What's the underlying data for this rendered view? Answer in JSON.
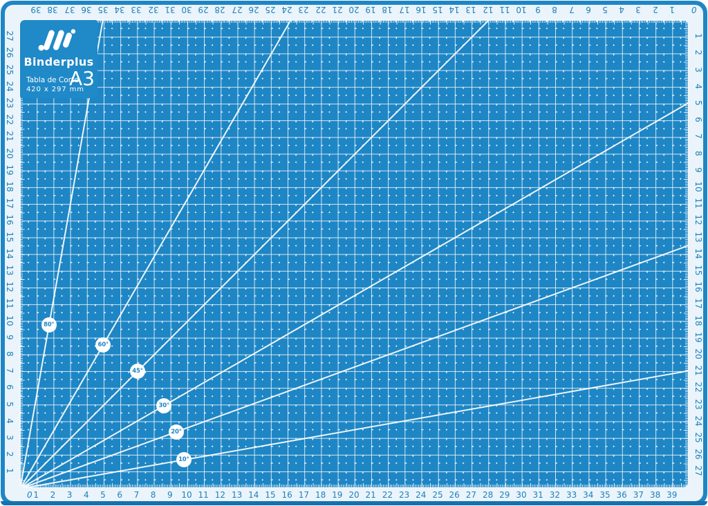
{
  "brand": {
    "name": "Binderplus"
  },
  "panel": {
    "product": "Tabla de Corte",
    "dimensions": "420 x 297 mm",
    "format": "A3"
  },
  "rulers": {
    "bottom": {
      "labels": [
        "1",
        "2",
        "3",
        "4",
        "5",
        "6",
        "7",
        "8",
        "9",
        "10",
        "11",
        "12",
        "13",
        "14",
        "15",
        "16",
        "17",
        "18",
        "19",
        "20",
        "21",
        "22",
        "23",
        "24",
        "25",
        "26",
        "27",
        "28",
        "29",
        "30",
        "31",
        "32",
        "33",
        "34",
        "35",
        "36",
        "37",
        "38",
        "39"
      ]
    },
    "top": {
      "labels": [
        "39",
        "38",
        "37",
        "36",
        "35",
        "34",
        "33",
        "32",
        "31",
        "30",
        "29",
        "28",
        "27",
        "26",
        "25",
        "24",
        "23",
        "22",
        "21",
        "20",
        "19",
        "18",
        "17",
        "16",
        "15",
        "14",
        "13",
        "12",
        "11",
        "10",
        "9",
        "8",
        "7",
        "6",
        "5",
        "4",
        "3",
        "2",
        "1"
      ]
    },
    "left": {
      "labels": [
        "27",
        "26",
        "25",
        "24",
        "23",
        "22",
        "21",
        "20",
        "19",
        "18",
        "17",
        "16",
        "15",
        "14",
        "13",
        "12",
        "11",
        "10",
        "9",
        "8",
        "7",
        "6",
        "5",
        "4",
        "3",
        "2",
        "1"
      ]
    },
    "right": {
      "labels": [
        "1",
        "2",
        "3",
        "4",
        "5",
        "6",
        "7",
        "8",
        "9",
        "10",
        "11",
        "12",
        "13",
        "14",
        "15",
        "16",
        "17",
        "18",
        "19",
        "20",
        "21",
        "22",
        "23",
        "24",
        "25",
        "26",
        "27"
      ]
    },
    "corner_zero_bottom_left": "0",
    "corner_zero_top_right": "0"
  },
  "angle_badges": [
    {
      "label": "80°",
      "degrees": 80
    },
    {
      "label": "60°",
      "degrees": 60
    },
    {
      "label": "45°",
      "degrees": 45
    },
    {
      "label": "30°",
      "degrees": 30
    },
    {
      "label": "20°",
      "degrees": 20
    },
    {
      "label": "10°",
      "degrees": 10
    }
  ],
  "colors": {
    "mat_blue": "#1E86C5",
    "panel_blue": "#2089C8",
    "band_light": "#EAF4FA",
    "grid_line": "rgba(255,255,255,0.8)",
    "badge_bg": "#FFFFFF",
    "number_blue": "#1C80BE",
    "mat_edge_dark": "#1571AC"
  }
}
